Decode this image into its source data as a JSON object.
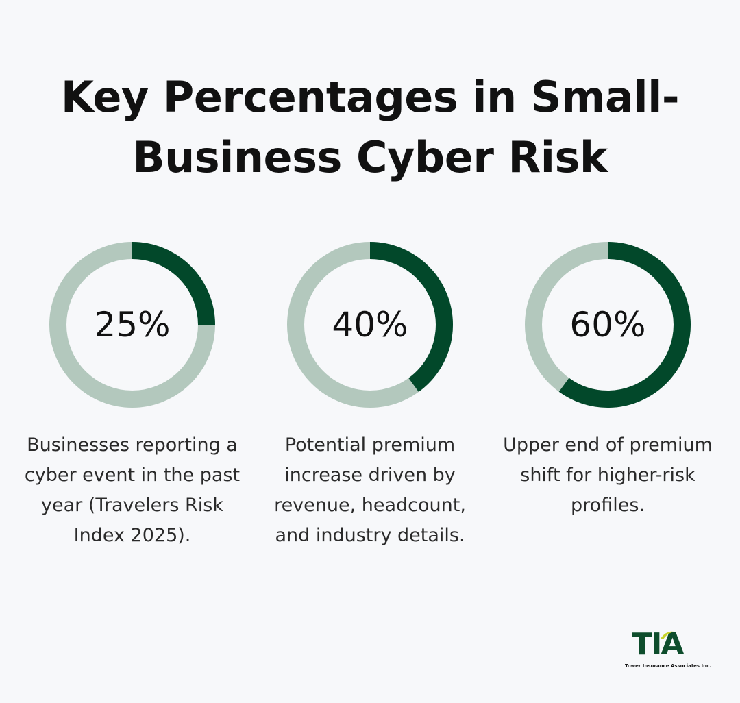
{
  "title": {
    "line1": "Key Percentages in Small-",
    "line2": "Business Cyber Risk"
  },
  "colors": {
    "background": "#f7f8fa",
    "ring_filled": "#02482a",
    "ring_track": "#b3c8bd",
    "text": "#111111"
  },
  "chart_data": {
    "type": "donut",
    "items": [
      {
        "value": 25,
        "label": "25%",
        "caption": "Businesses reporting a cyber event in the past year (Travelers Risk Index 2025)."
      },
      {
        "value": 40,
        "label": "40%",
        "caption": "Potential premium increase driven by revenue, headcount, and industry details."
      },
      {
        "value": 60,
        "label": "60%",
        "caption": "Upper end of premium shift for higher-risk profiles."
      }
    ]
  },
  "logo": {
    "mark_letters": [
      "T",
      "I",
      "A"
    ],
    "subtitle": "Tower Insurance Associates Inc."
  }
}
